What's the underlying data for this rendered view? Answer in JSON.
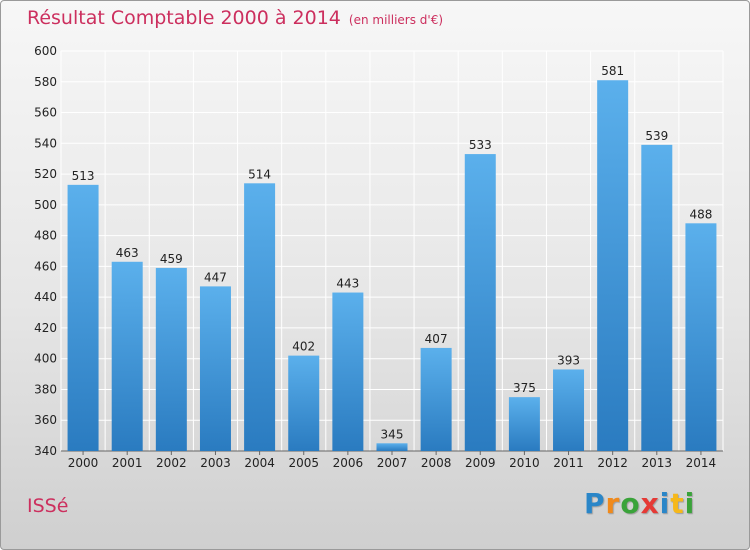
{
  "title": "Résultat Comptable 2000 à 2014",
  "unit": "(en milliers d'€)",
  "city": "ISSé",
  "logo": {
    "letters": [
      "P",
      "r",
      "o",
      "x",
      "i",
      "t",
      "i"
    ],
    "colors": [
      "#2a86c8",
      "#f08a1c",
      "#3aa33a",
      "#e53935",
      "#2a86c8",
      "#f6b81a",
      "#3aa33a"
    ]
  },
  "colors": {
    "bar_top": "#5bb0ec",
    "bar_bottom": "#2a7bc0",
    "grid": "#ffffff",
    "title": "#cc2f5e"
  },
  "chart_data": {
    "type": "bar",
    "title": "Résultat Comptable 2000 à 2014",
    "xlabel": "",
    "ylabel": "",
    "categories": [
      "2000",
      "2001",
      "2002",
      "2003",
      "2004",
      "2005",
      "2006",
      "2007",
      "2008",
      "2009",
      "2010",
      "2011",
      "2012",
      "2013",
      "2014"
    ],
    "values": [
      513,
      463,
      459,
      447,
      514,
      402,
      443,
      345,
      407,
      533,
      375,
      393,
      581,
      539,
      488
    ],
    "ylim": [
      340,
      600
    ],
    "yticks": [
      340,
      360,
      380,
      400,
      420,
      440,
      460,
      480,
      500,
      520,
      540,
      560,
      580,
      600
    ],
    "grid": true,
    "data_labels": true
  }
}
